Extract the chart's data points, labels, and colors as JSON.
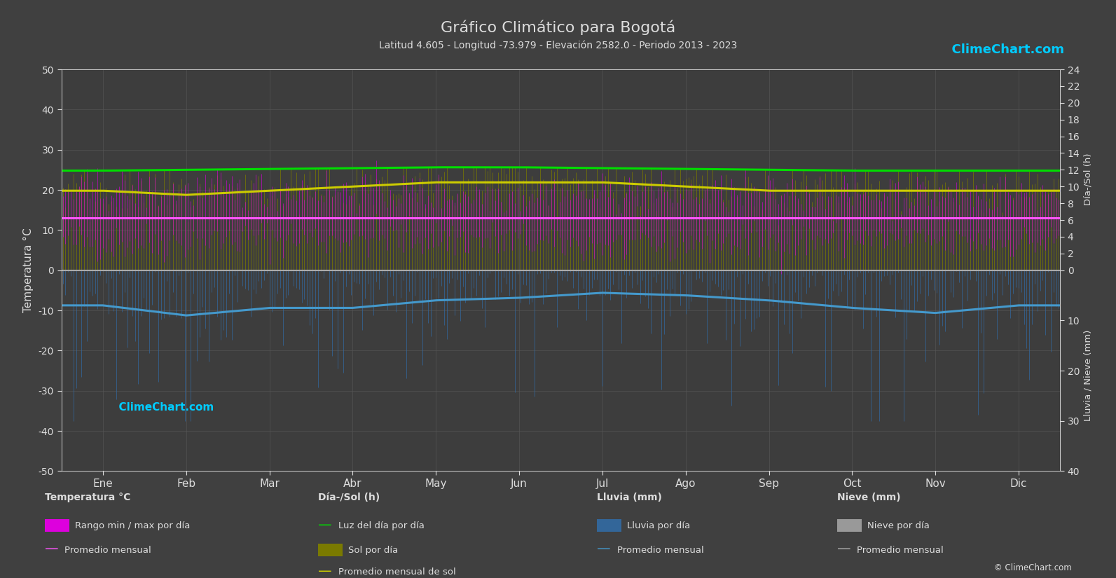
{
  "title": "Gráfico Climático para Bogotá",
  "subtitle": "Latitud 4.605 - Longitud -73.979 - Elevación 2582.0 - Periodo 2013 - 2023",
  "background_color": "#404040",
  "plot_bg_color": "#3d3d3d",
  "months": [
    "Ene",
    "Feb",
    "Mar",
    "Abr",
    "May",
    "Jun",
    "Jul",
    "Ago",
    "Sep",
    "Oct",
    "Nov",
    "Dic"
  ],
  "temp_min_monthly": [
    7,
    7,
    8,
    8,
    8,
    7,
    6,
    7,
    7,
    8,
    7,
    7
  ],
  "temp_max_monthly": [
    20,
    20,
    20,
    20,
    19,
    19,
    19,
    19,
    19,
    19,
    19,
    19
  ],
  "temp_avg_monthly": [
    13,
    13,
    13,
    13,
    13,
    13,
    13,
    13,
    13,
    13,
    13,
    13
  ],
  "daylight_monthly": [
    11.9,
    12.0,
    12.1,
    12.2,
    12.3,
    12.3,
    12.2,
    12.1,
    12.0,
    11.9,
    11.9,
    11.9
  ],
  "sun_monthly_avg": [
    9.5,
    9.0,
    9.5,
    10.0,
    10.5,
    10.5,
    10.5,
    10.0,
    9.5,
    9.5,
    9.5,
    9.5
  ],
  "rain_monthly_avg_mm": [
    7.0,
    9.0,
    7.5,
    7.5,
    6.0,
    5.5,
    4.5,
    5.0,
    6.0,
    7.5,
    8.5,
    7.0
  ],
  "snow_monthly_avg_mm": [
    0.0,
    0.0,
    0.0,
    0.0,
    0.0,
    0.0,
    0.0,
    0.0,
    0.0,
    0.0,
    0.0,
    0.0
  ],
  "temp_ylim": [
    -50,
    50
  ],
  "daylight_max": 24,
  "rain_max": 40,
  "grid_color": "#585858",
  "text_color": "#dddddd",
  "magenta_color": "#dd00dd",
  "pink_line_color": "#ff55ff",
  "green_line_color": "#00dd00",
  "olive_bar_color": "#7a7a00",
  "blue_bar_color": "#336699",
  "blue_line_color": "#4499cc",
  "snow_bar_color": "#999999",
  "snow_line_color": "#aaaaaa",
  "yellow_line_color": "#cccc00",
  "logo_color_text": "#00ccff",
  "watermark_text": "ClimeChart.com"
}
